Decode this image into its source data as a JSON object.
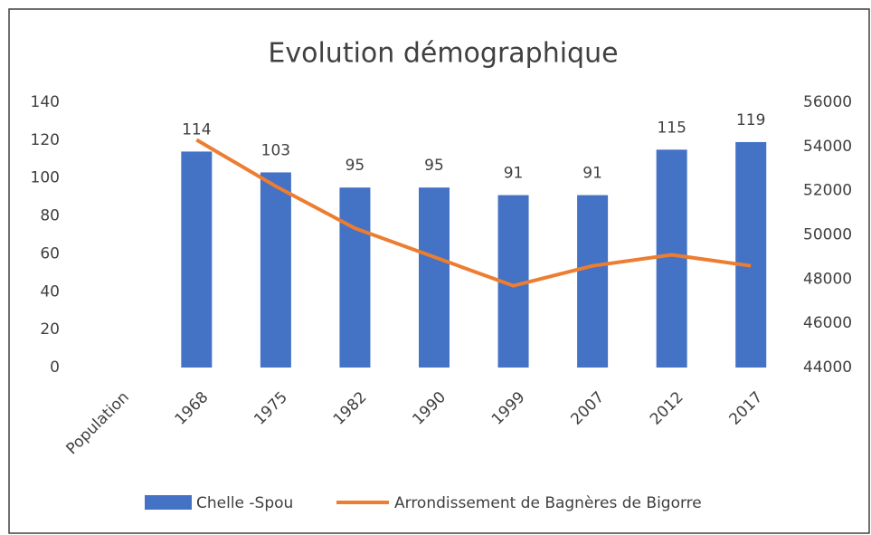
{
  "chart_data": {
    "type": "bar-line",
    "title": "Evolution démographique",
    "categories": [
      "Population",
      "1968",
      "1975",
      "1982",
      "1990",
      "1999",
      "2007",
      "2012",
      "2017"
    ],
    "series": [
      {
        "name": "Chelle -Spou",
        "type": "bar",
        "color": "#4472c4",
        "axis": "y",
        "values": [
          null,
          114,
          103,
          95,
          95,
          91,
          91,
          115,
          119
        ]
      },
      {
        "name": "Arrondissement de Bagnères de Bigorre",
        "type": "line",
        "color": "#ed7d31",
        "axis": "y2",
        "values": [
          null,
          54300,
          52200,
          50300,
          49000,
          47700,
          48600,
          49100,
          48600
        ]
      }
    ],
    "ylim": [
      0,
      140
    ],
    "yticks": [
      0,
      20,
      40,
      60,
      80,
      100,
      120,
      140
    ],
    "y2lim": [
      44000,
      56000
    ],
    "y2ticks": [
      44000,
      46000,
      48000,
      50000,
      52000,
      54000,
      56000
    ],
    "legend": "bottom"
  }
}
